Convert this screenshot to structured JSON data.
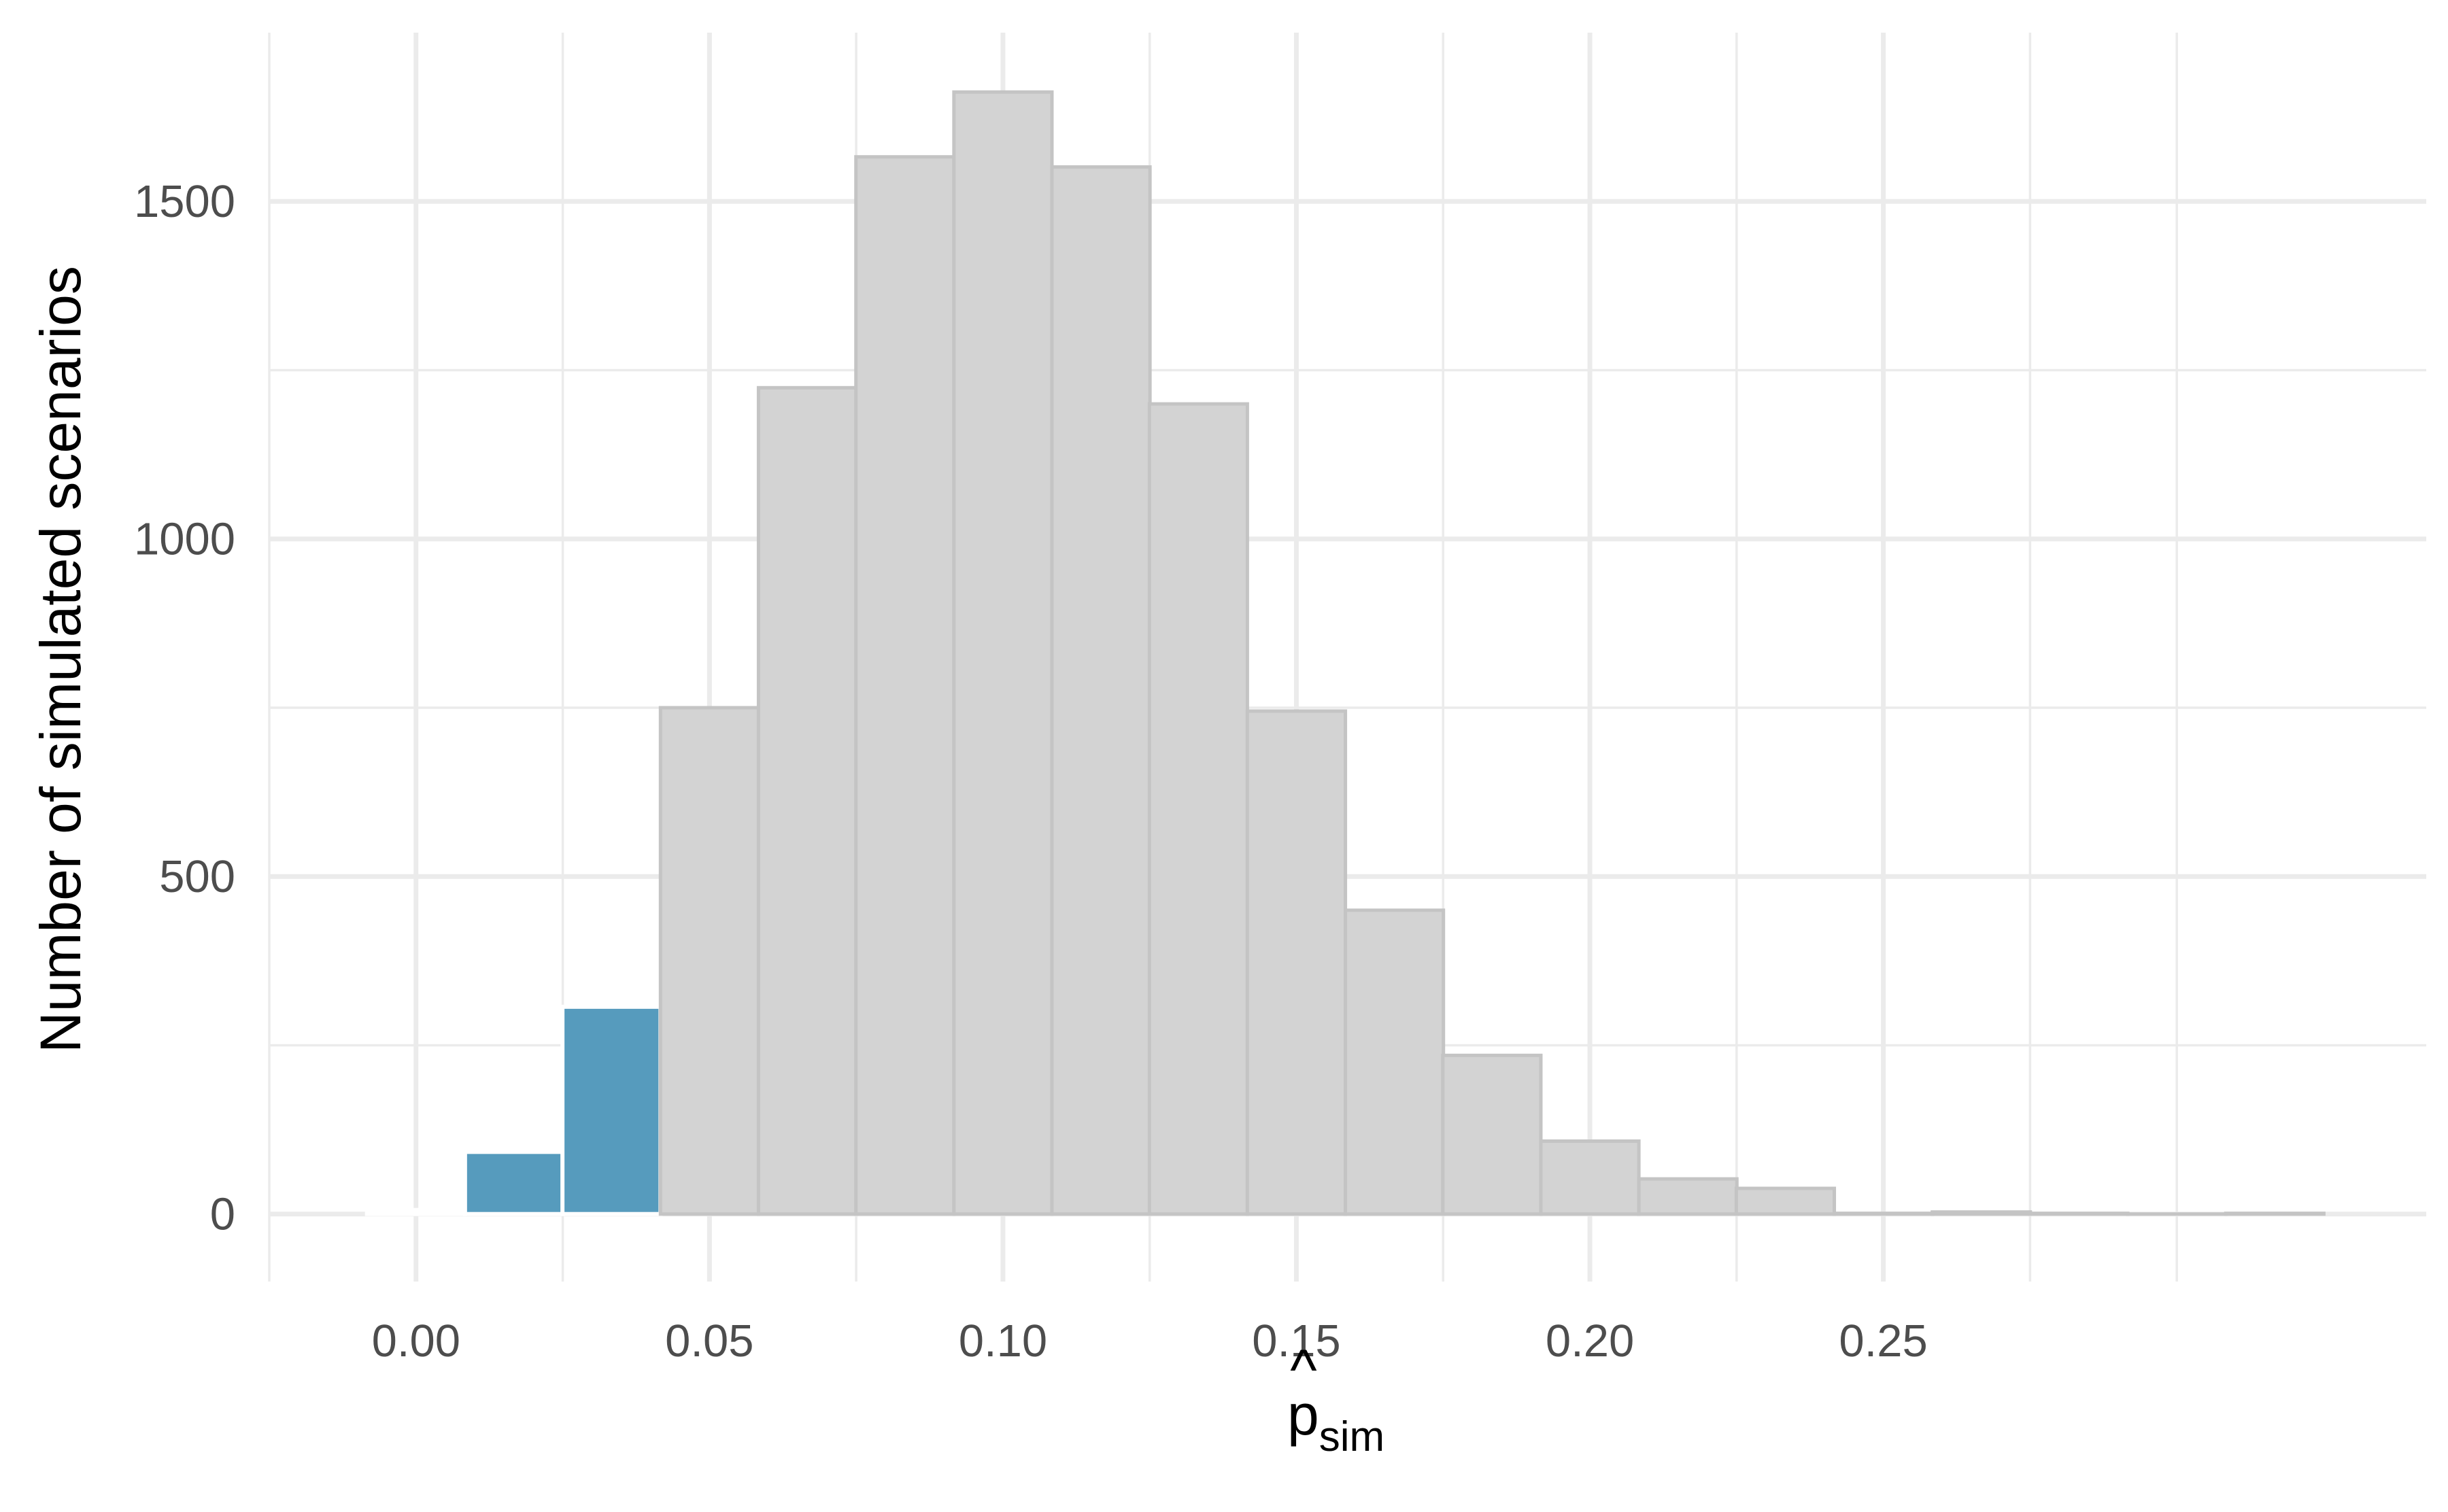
{
  "chart_data": {
    "type": "bar",
    "subtype": "histogram",
    "xlabel": {
      "base": "p",
      "accent": "^",
      "subscript": "sim"
    },
    "ylabel": "Number of simulated scenarios",
    "xlim": [
      -0.025,
      0.3425
    ],
    "ylim": [
      -100,
      1750
    ],
    "x_ticks": [
      {
        "value": 0.0,
        "label": "0.00"
      },
      {
        "value": 0.05,
        "label": "0.05"
      },
      {
        "value": 0.1,
        "label": "0.10"
      },
      {
        "value": 0.15,
        "label": "0.15"
      },
      {
        "value": 0.2,
        "label": "0.20"
      },
      {
        "value": 0.25,
        "label": "0.25"
      }
    ],
    "x_minor_gridlines": [
      -0.025,
      0.025,
      0.075,
      0.125,
      0.175,
      0.225,
      0.275,
      0.3
    ],
    "y_ticks": [
      {
        "value": 0,
        "label": "0"
      },
      {
        "value": 500,
        "label": "500"
      },
      {
        "value": 1000,
        "label": "1000"
      },
      {
        "value": 1500,
        "label": "1500"
      }
    ],
    "y_minor_gridlines": [
      250,
      750,
      1250
    ],
    "grid": true,
    "legend": "none",
    "bin_width": 0.0167,
    "bins": [
      {
        "x": 0.0,
        "count": 6,
        "highlight": true
      },
      {
        "x": 0.0167,
        "count": 92,
        "highlight": true
      },
      {
        "x": 0.0333,
        "count": 307,
        "highlight": true
      },
      {
        "x": 0.05,
        "count": 750,
        "highlight": false
      },
      {
        "x": 0.0667,
        "count": 1224,
        "highlight": false
      },
      {
        "x": 0.0833,
        "count": 1566,
        "highlight": false
      },
      {
        "x": 0.1,
        "count": 1662,
        "highlight": false
      },
      {
        "x": 0.1167,
        "count": 1551,
        "highlight": false
      },
      {
        "x": 0.1333,
        "count": 1200,
        "highlight": false
      },
      {
        "x": 0.15,
        "count": 745,
        "highlight": false
      },
      {
        "x": 0.1667,
        "count": 450,
        "highlight": false
      },
      {
        "x": 0.1833,
        "count": 235,
        "highlight": false
      },
      {
        "x": 0.2,
        "count": 108,
        "highlight": false
      },
      {
        "x": 0.2167,
        "count": 52,
        "highlight": false
      },
      {
        "x": 0.2333,
        "count": 38,
        "highlight": false
      },
      {
        "x": 0.25,
        "count": 1,
        "highlight": false
      },
      {
        "x": 0.2667,
        "count": 3,
        "highlight": false
      },
      {
        "x": 0.2833,
        "count": 1,
        "highlight": false
      },
      {
        "x": 0.3,
        "count": 0,
        "highlight": false
      },
      {
        "x": 0.3167,
        "count": 1,
        "highlight": false
      }
    ],
    "colors": {
      "highlight_fill": "#569BBD",
      "highlight_stroke": "#ffffff",
      "default_fill": "#d3d3d3",
      "default_stroke": "#c4c4c4",
      "grid": "#ebebeb",
      "tick_text": "#4d4d4d",
      "title_text": "#000000",
      "background": "#ffffff"
    }
  }
}
